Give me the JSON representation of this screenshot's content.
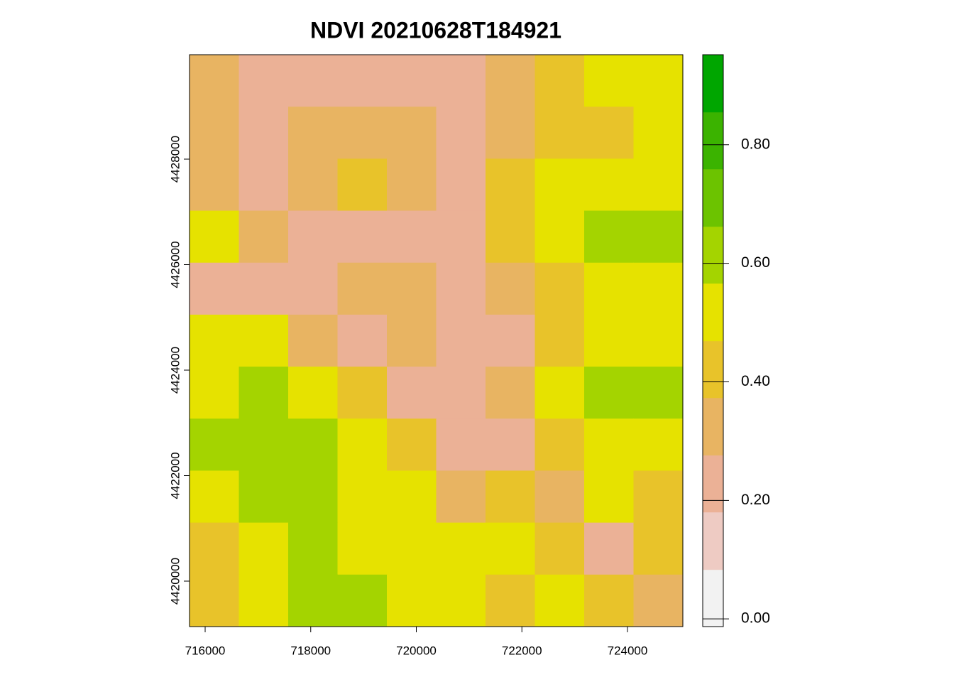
{
  "chart_data": {
    "type": "raster",
    "title": "NDVI 20210628T184921",
    "xlim": [
      715704,
      725049
    ],
    "ylim": [
      4419138,
      4429980
    ],
    "xticks": [
      716000,
      718000,
      720000,
      722000,
      724000
    ],
    "yticks": [
      4420000,
      4422000,
      4424000,
      4426000,
      4428000
    ],
    "values": [
      [
        0.3,
        0.2,
        0.2,
        0.25,
        0.2,
        0.2,
        0.3,
        0.45,
        0.5,
        0.55
      ],
      [
        0.35,
        0.2,
        0.3,
        0.35,
        0.3,
        0.25,
        0.3,
        0.4,
        0.45,
        0.5
      ],
      [
        0.3,
        0.2,
        0.3,
        0.4,
        0.35,
        0.25,
        0.4,
        0.5,
        0.5,
        0.55
      ],
      [
        0.5,
        0.3,
        0.25,
        0.25,
        0.25,
        0.25,
        0.45,
        0.55,
        0.6,
        0.6
      ],
      [
        0.25,
        0.2,
        0.25,
        0.3,
        0.35,
        0.25,
        0.3,
        0.45,
        0.5,
        0.5
      ],
      [
        0.5,
        0.5,
        0.3,
        0.25,
        0.3,
        0.25,
        0.25,
        0.4,
        0.5,
        0.55
      ],
      [
        0.55,
        0.6,
        0.55,
        0.45,
        0.25,
        0.25,
        0.3,
        0.5,
        0.65,
        0.6
      ],
      [
        0.6,
        0.6,
        0.6,
        0.55,
        0.45,
        0.25,
        0.25,
        0.45,
        0.55,
        0.5
      ],
      [
        0.5,
        0.65,
        0.65,
        0.55,
        0.5,
        0.3,
        0.45,
        0.3,
        0.5,
        0.45
      ],
      [
        0.45,
        0.55,
        0.65,
        0.55,
        0.55,
        0.5,
        0.55,
        0.45,
        0.25,
        0.45
      ],
      [
        0.4,
        0.5,
        0.65,
        0.6,
        0.55,
        0.5,
        0.45,
        0.55,
        0.45,
        0.3
      ]
    ],
    "colorbar": {
      "lim": [
        -0.013,
        0.952
      ],
      "breaks": [
        -0.013,
        0.083,
        0.18,
        0.276,
        0.373,
        0.469,
        0.566,
        0.662,
        0.759,
        0.855,
        0.952
      ],
      "colors": [
        "#f2f2f2",
        "#eecbc3",
        "#ebb196",
        "#e8b462",
        "#e8c32a",
        "#e6e200",
        "#a4d400",
        "#6cc300",
        "#3bb300",
        "#00a600"
      ],
      "ticks": [
        {
          "value": 0,
          "label": "0.00"
        },
        {
          "value": 0.2,
          "label": "0.20"
        },
        {
          "value": 0.4,
          "label": "0.40"
        },
        {
          "value": 0.6,
          "label": "0.60"
        },
        {
          "value": 0.8,
          "label": "0.80"
        }
      ]
    }
  }
}
